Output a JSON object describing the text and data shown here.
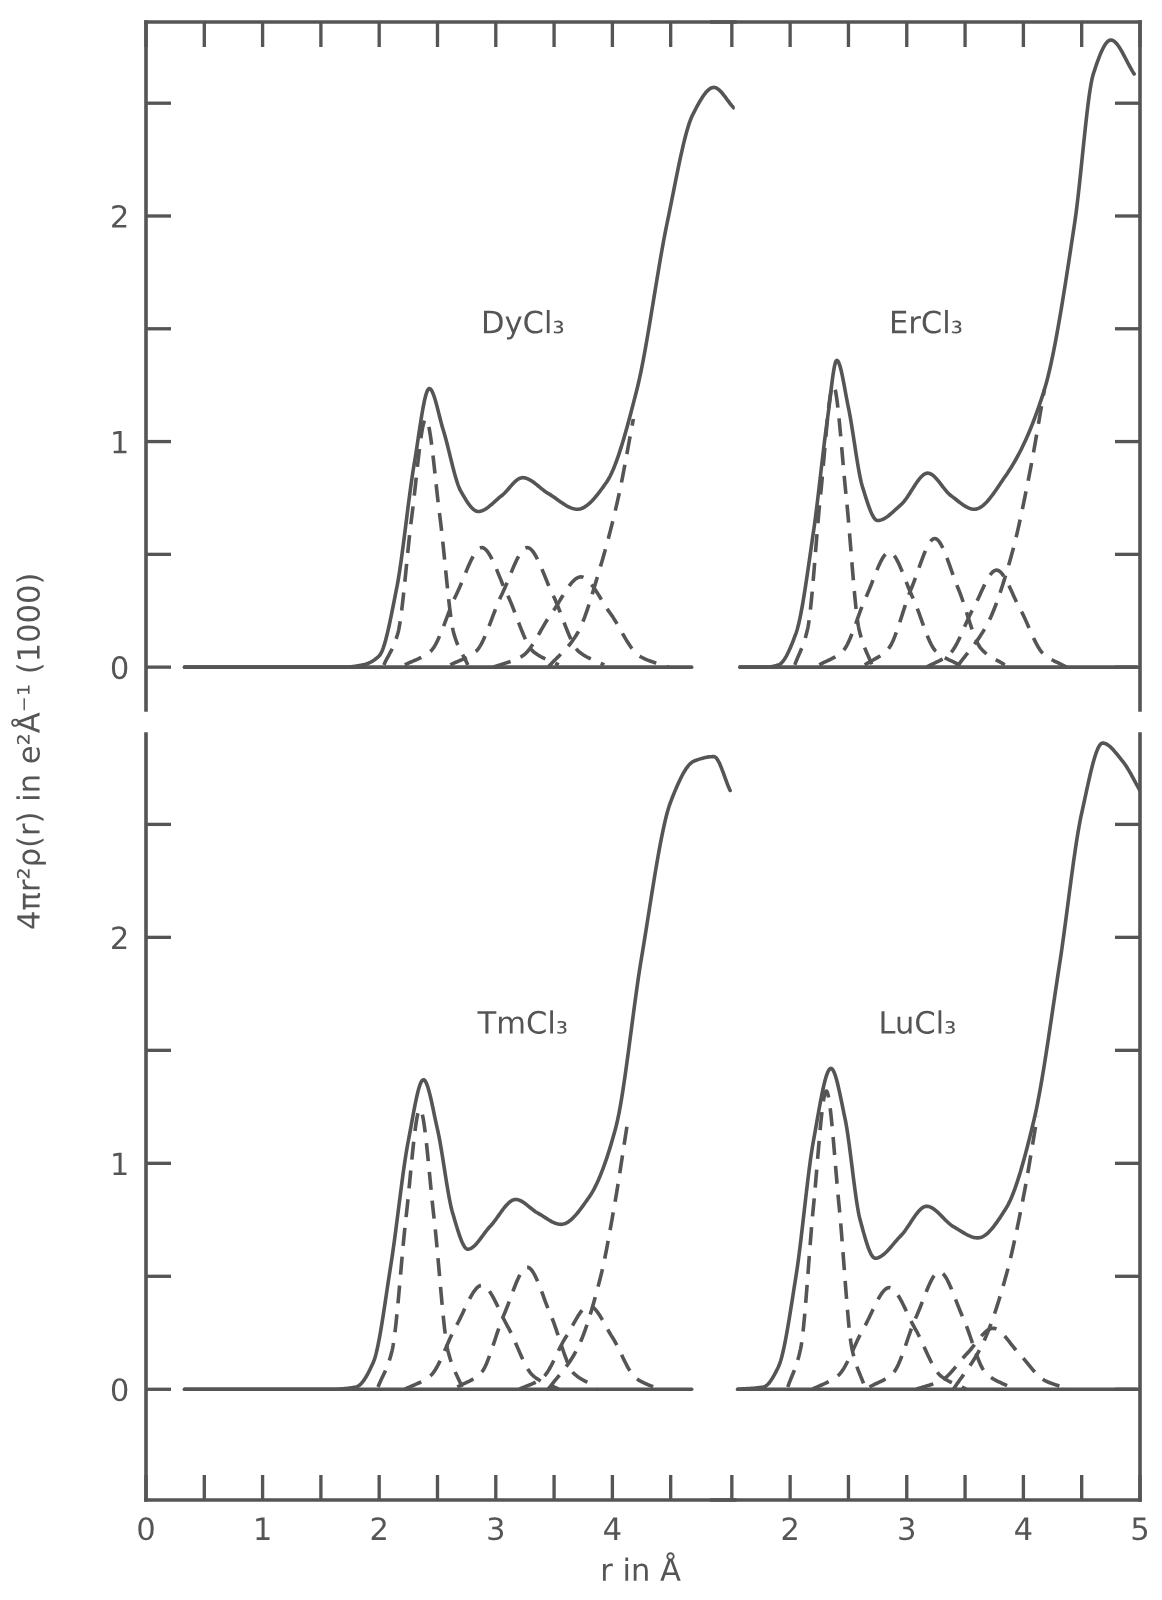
{
  "chart_data": [
    {
      "type": "line",
      "title": "DyCl₃",
      "ylabel": "4πr²ρ(r) in e²Å⁻¹ (1000)",
      "xlim": [
        0,
        5.05
      ],
      "ylim": [
        -0.19,
        2.86
      ],
      "tick_labels": "y",
      "xticks": [
        0,
        {
          "value": 0.5,
          "label": null
        },
        1,
        {
          "value": 1.5,
          "label": null
        },
        2,
        {
          "value": 2.5,
          "label": null
        },
        3,
        {
          "value": 3.5,
          "label": null
        },
        4,
        {
          "value": 4.5,
          "label": null
        }
      ],
      "yticks": [
        0,
        {
          "value": 0.5,
          "label": null
        },
        1,
        {
          "value": 1.5,
          "label": null
        },
        2,
        {
          "value": 2.5,
          "label": null
        }
      ],
      "series": [
        {
          "color": "#555555",
          "line_style": "solid",
          "x": [
            0.33,
            4.68
          ],
          "values": [
            0,
            0
          ]
        },
        {
          "color": "#555555",
          "line_style": "solid",
          "x": [
            0.33,
            1.7,
            1.86,
            2.0,
            2.15,
            2.3,
            2.43,
            2.55,
            2.7,
            2.85,
            3.05,
            3.23,
            3.45,
            3.7,
            3.95,
            4.21,
            4.47,
            4.69,
            4.87,
            5.04
          ],
          "values": [
            0,
            0,
            0.01,
            0.05,
            0.35,
            0.9,
            1.235,
            1.05,
            0.78,
            0.69,
            0.76,
            0.84,
            0.77,
            0.7,
            0.82,
            1.23,
            1.97,
            2.45,
            2.57,
            2.48
          ]
        },
        {
          "color": "#555555",
          "line_style": "dashed",
          "x": [
            2.04,
            2.16,
            2.28,
            2.4,
            2.52,
            2.64,
            2.76
          ],
          "values": [
            0.01,
            0.15,
            0.67,
            1.1,
            0.67,
            0.15,
            0.01
          ]
        },
        {
          "color": "#555555",
          "line_style": "dashed",
          "x": [
            2.22,
            2.44,
            2.66,
            2.88,
            3.1,
            3.32,
            3.54
          ],
          "values": [
            0.01,
            0.07,
            0.32,
            0.53,
            0.32,
            0.07,
            0.01
          ]
        },
        {
          "color": "#555555",
          "line_style": "dashed",
          "x": [
            2.61,
            2.83,
            3.05,
            3.27,
            3.49,
            3.71,
            3.93
          ],
          "values": [
            0.01,
            0.07,
            0.32,
            0.53,
            0.32,
            0.07,
            0.01
          ]
        },
        {
          "color": "#555555",
          "line_style": "dashed",
          "x": [
            2.98,
            3.23,
            3.48,
            3.73,
            3.98,
            4.23,
            4.48
          ],
          "values": [
            0,
            0.05,
            0.24,
            0.4,
            0.24,
            0.05,
            0
          ]
        },
        {
          "color": "#555555",
          "line_style": "dashed",
          "x": [
            3.45,
            3.7,
            3.9,
            4.05,
            4.18
          ],
          "values": [
            0,
            0.15,
            0.45,
            0.75,
            1.1
          ]
        }
      ]
    },
    {
      "type": "line",
      "title": "ErCl₃",
      "xlim": [
        1.33,
        5.0
      ],
      "ylim": [
        -0.19,
        2.86
      ],
      "tick_labels": false,
      "xticks": [
        {
          "value": 1.5,
          "label": null
        },
        2,
        {
          "value": 2.5,
          "label": null
        },
        3,
        {
          "value": 3.5,
          "label": null
        },
        4,
        {
          "value": 4.5,
          "label": null
        },
        5
      ],
      "yticks": [
        0,
        {
          "value": 0.5,
          "label": null
        },
        1,
        {
          "value": 1.5,
          "label": null
        },
        2,
        {
          "value": 2.5,
          "label": null
        }
      ],
      "series": [
        {
          "color": "#555555",
          "line_style": "solid",
          "x": [
            1.57,
            4.97
          ],
          "values": [
            0,
            0
          ]
        },
        {
          "color": "#555555",
          "line_style": "solid",
          "x": [
            1.57,
            1.8,
            1.9,
            2.05,
            2.2,
            2.32,
            2.4,
            2.5,
            2.62,
            2.75,
            2.95,
            3.18,
            3.38,
            3.58,
            3.85,
            4.18,
            4.44,
            4.6,
            4.75,
            4.95
          ],
          "values": [
            0,
            0,
            0.01,
            0.15,
            0.6,
            1.1,
            1.36,
            1.15,
            0.8,
            0.65,
            0.72,
            0.86,
            0.76,
            0.7,
            0.85,
            1.23,
            1.97,
            2.63,
            2.78,
            2.63
          ]
        },
        {
          "color": "#555555",
          "line_style": "dashed",
          "x": [
            2.04,
            2.15,
            2.26,
            2.37,
            2.48,
            2.59,
            2.7
          ],
          "values": [
            0.01,
            0.17,
            0.76,
            1.25,
            0.76,
            0.17,
            0.01
          ]
        },
        {
          "color": "#555555",
          "line_style": "dashed",
          "x": [
            2.25,
            2.45,
            2.65,
            2.85,
            3.05,
            3.25,
            3.45
          ],
          "values": [
            0.01,
            0.07,
            0.31,
            0.51,
            0.31,
            0.07,
            0.01
          ]
        },
        {
          "color": "#555555",
          "line_style": "dashed",
          "x": [
            2.64,
            2.84,
            3.04,
            3.24,
            3.44,
            3.64,
            3.84
          ],
          "values": [
            0.01,
            0.08,
            0.35,
            0.57,
            0.35,
            0.08,
            0.01
          ]
        },
        {
          "color": "#555555",
          "line_style": "dashed",
          "x": [
            3.17,
            3.37,
            3.57,
            3.77,
            3.97,
            4.17,
            4.37
          ],
          "values": [
            0,
            0.06,
            0.26,
            0.43,
            0.26,
            0.06,
            0
          ]
        },
        {
          "color": "#555555",
          "line_style": "dashed",
          "x": [
            3.43,
            3.7,
            3.9,
            4.05,
            4.18
          ],
          "values": [
            0,
            0.2,
            0.5,
            0.85,
            1.23
          ]
        }
      ]
    },
    {
      "type": "line",
      "title": "TmCl₃",
      "xlabel": "r in Å",
      "xlim": [
        0,
        5.05
      ],
      "ylim": [
        -0.49,
        2.9
      ],
      "xticks": [
        0,
        {
          "value": 0.5,
          "label": null
        },
        1,
        {
          "value": 1.5,
          "label": null
        },
        2,
        {
          "value": 2.5,
          "label": null
        },
        3,
        {
          "value": 3.5,
          "label": null
        },
        4,
        {
          "value": 4.5,
          "label": null
        }
      ],
      "yticks": [
        0,
        {
          "value": 0.5,
          "label": null
        },
        1,
        {
          "value": 1.5,
          "label": null
        },
        2,
        {
          "value": 2.5,
          "label": null
        }
      ],
      "series": [
        {
          "color": "#555555",
          "line_style": "solid",
          "x": [
            0.33,
            4.68
          ],
          "values": [
            0,
            0
          ]
        },
        {
          "color": "#555555",
          "line_style": "solid",
          "x": [
            0.33,
            1.6,
            1.8,
            1.95,
            2.1,
            2.25,
            2.38,
            2.5,
            2.63,
            2.76,
            2.95,
            3.17,
            3.36,
            3.56,
            3.8,
            4.03,
            4.25,
            4.5,
            4.7,
            4.87,
            5.01
          ],
          "values": [
            0,
            0,
            0.01,
            0.12,
            0.55,
            1.1,
            1.37,
            1.15,
            0.78,
            0.62,
            0.72,
            0.84,
            0.78,
            0.73,
            0.85,
            1.16,
            1.91,
            2.6,
            2.78,
            2.8,
            2.65
          ]
        },
        {
          "color": "#555555",
          "line_style": "dashed",
          "x": [
            1.99,
            2.11,
            2.23,
            2.35,
            2.47,
            2.59,
            2.71
          ],
          "values": [
            0.01,
            0.17,
            0.76,
            1.24,
            0.76,
            0.17,
            0.01
          ]
        },
        {
          "color": "#555555",
          "line_style": "dashed",
          "x": [
            2.22,
            2.44,
            2.66,
            2.88,
            3.1,
            3.32,
            3.54
          ],
          "values": [
            0,
            0.06,
            0.28,
            0.46,
            0.28,
            0.06,
            0
          ]
        },
        {
          "color": "#555555",
          "line_style": "dashed",
          "x": [
            2.67,
            2.87,
            3.07,
            3.27,
            3.47,
            3.67,
            3.87
          ],
          "values": [
            0.01,
            0.07,
            0.33,
            0.54,
            0.33,
            0.07,
            0.01
          ]
        },
        {
          "color": "#555555",
          "line_style": "dashed",
          "x": [
            3.2,
            3.4,
            3.6,
            3.8,
            4.0,
            4.2,
            4.4
          ],
          "values": [
            0,
            0.05,
            0.23,
            0.37,
            0.23,
            0.05,
            0
          ]
        },
        {
          "color": "#555555",
          "line_style": "dashed",
          "x": [
            3.45,
            3.7,
            3.9,
            4.02,
            4.13
          ],
          "values": [
            0,
            0.18,
            0.5,
            0.82,
            1.18
          ]
        }
      ]
    },
    {
      "type": "line",
      "title": "LuCl₃",
      "xlim": [
        1.33,
        5.0
      ],
      "ylim": [
        -0.49,
        2.9
      ],
      "tick_labels": "x",
      "xticks": [
        {
          "value": 1.5,
          "label": null
        },
        2,
        {
          "value": 2.5,
          "label": null
        },
        3,
        {
          "value": 3.5,
          "label": null
        },
        4,
        {
          "value": 4.5,
          "label": null
        },
        5
      ],
      "yticks": [
        0,
        {
          "value": 0.5,
          "label": null
        },
        1,
        {
          "value": 1.5,
          "label": null
        },
        2,
        {
          "value": 2.5,
          "label": null
        }
      ],
      "series": [
        {
          "color": "#555555",
          "line_style": "solid",
          "x": [
            1.55,
            4.97
          ],
          "values": [
            0,
            0
          ]
        },
        {
          "color": "#555555",
          "line_style": "solid",
          "x": [
            1.55,
            1.77,
            1.9,
            2.05,
            2.2,
            2.35,
            2.47,
            2.6,
            2.73,
            2.95,
            3.17,
            3.4,
            3.61,
            3.85,
            4.09,
            4.31,
            4.5,
            4.68,
            4.85,
            5.0
          ],
          "values": [
            0,
            0.01,
            0.1,
            0.5,
            1.1,
            1.42,
            1.2,
            0.75,
            0.58,
            0.68,
            0.81,
            0.72,
            0.67,
            0.8,
            1.19,
            1.88,
            2.55,
            2.86,
            2.78,
            2.65
          ]
        },
        {
          "color": "#555555",
          "line_style": "dashed",
          "x": [
            1.98,
            2.09,
            2.2,
            2.31,
            2.42,
            2.53,
            2.64
          ],
          "values": [
            0.01,
            0.18,
            0.81,
            1.32,
            0.81,
            0.18,
            0.01
          ]
        },
        {
          "color": "#555555",
          "line_style": "dashed",
          "x": [
            2.19,
            2.41,
            2.63,
            2.85,
            3.07,
            3.29,
            3.51
          ],
          "values": [
            0,
            0.06,
            0.27,
            0.45,
            0.27,
            0.06,
            0
          ]
        },
        {
          "color": "#555555",
          "line_style": "dashed",
          "x": [
            2.68,
            2.88,
            3.08,
            3.28,
            3.48,
            3.68,
            3.88
          ],
          "values": [
            0.01,
            0.07,
            0.32,
            0.52,
            0.32,
            0.07,
            0.01
          ]
        },
        {
          "color": "#555555",
          "line_style": "dashed",
          "x": [
            3.08,
            3.3,
            3.52,
            3.74,
            3.96,
            4.18,
            4.4
          ],
          "values": [
            0,
            0.04,
            0.16,
            0.27,
            0.16,
            0.04,
            0
          ]
        },
        {
          "color": "#555555",
          "line_style": "dashed",
          "x": [
            3.4,
            3.65,
            3.85,
            4.0,
            4.12
          ],
          "values": [
            0,
            0.2,
            0.5,
            0.85,
            1.21
          ]
        }
      ]
    }
  ]
}
